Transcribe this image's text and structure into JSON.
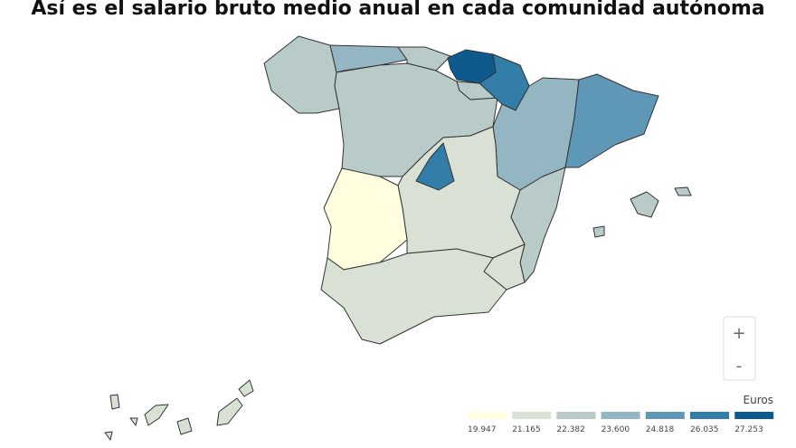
{
  "header": {
    "title": "Así es el salario bruto medio anual en cada comunidad autónoma"
  },
  "zoom": {
    "in": "+",
    "out": "-"
  },
  "legend": {
    "title": "Euros",
    "bins": [
      {
        "label": "19.947",
        "color": "#ffffe0"
      },
      {
        "label": "21.165",
        "color": "#d8e1d4"
      },
      {
        "label": "22.382",
        "color": "#b8cbc8"
      },
      {
        "label": "23.600",
        "color": "#94b6c2"
      },
      {
        "label": "24.818",
        "color": "#5f97b6"
      },
      {
        "label": "26.035",
        "color": "#337ea8"
      },
      {
        "label": "27.253",
        "color": "#0d5a8e"
      }
    ]
  }
}
